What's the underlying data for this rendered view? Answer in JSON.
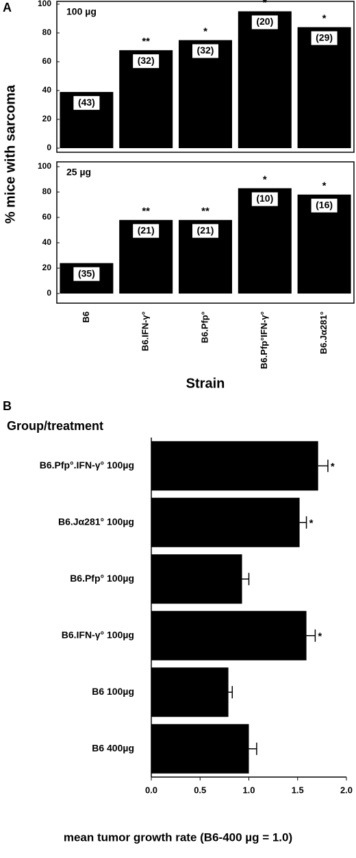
{
  "chart_data": [
    {
      "type": "bar",
      "panel": "A",
      "dose": "100 µg",
      "ylabel": "% mice with sarcoma",
      "values": [
        39,
        68,
        75,
        95,
        84
      ],
      "n_labels": [
        "(43)",
        "(32)",
        "(32)",
        "(20)",
        "(29)"
      ],
      "stars": [
        null,
        "**",
        "*",
        "*",
        "*"
      ],
      "color": "#000000",
      "ylim": [
        0,
        100
      ],
      "yticks": [
        0,
        20,
        40,
        60,
        80,
        100
      ]
    },
    {
      "type": "bar",
      "dose": "25 µg",
      "xlabel": "Strain",
      "categories": [
        "B6",
        "B6.IFN-γ°",
        "B6.Pfp°",
        "B6.Pfp°IFN-γ°",
        "B6.Jα281°"
      ],
      "values": [
        24,
        58,
        58,
        83,
        78
      ],
      "n_labels": [
        "(35)",
        "(21)",
        "(21)",
        "(10)",
        "(16)"
      ],
      "stars": [
        null,
        "**",
        "**",
        "*",
        "*"
      ],
      "color": "#000000",
      "ylim": [
        0,
        100
      ],
      "yticks": [
        0,
        20,
        40,
        60,
        80,
        100
      ]
    },
    {
      "type": "barh",
      "panel": "B",
      "title": "Group/treatment",
      "xlabel": "mean tumor growth rate (B6-400 µg = 1.0)",
      "categories": [
        "B6.Pfp°.IFN-γ° 100µg",
        "B6.Jα281° 100µg",
        "B6.Pfp° 100µg",
        "B6.IFN-γ° 100µg",
        "B6 100µg",
        "B6 400µg"
      ],
      "values": [
        1.71,
        1.52,
        0.93,
        1.59,
        0.79,
        1.0
      ],
      "errors": [
        0.1,
        0.07,
        0.07,
        0.09,
        0.04,
        0.08
      ],
      "stars": [
        "*",
        "*",
        null,
        "*",
        null,
        null
      ],
      "color": "#000000",
      "xlim": [
        0,
        2
      ],
      "xticks": [
        {
          "value": 0,
          "label": "0.0"
        },
        {
          "value": 0.5,
          "label": "0.5"
        },
        {
          "value": 1,
          "label": "1.0"
        },
        {
          "value": 1.5,
          "label": "1.5"
        },
        {
          "value": 2,
          "label": "2.0"
        }
      ]
    }
  ]
}
